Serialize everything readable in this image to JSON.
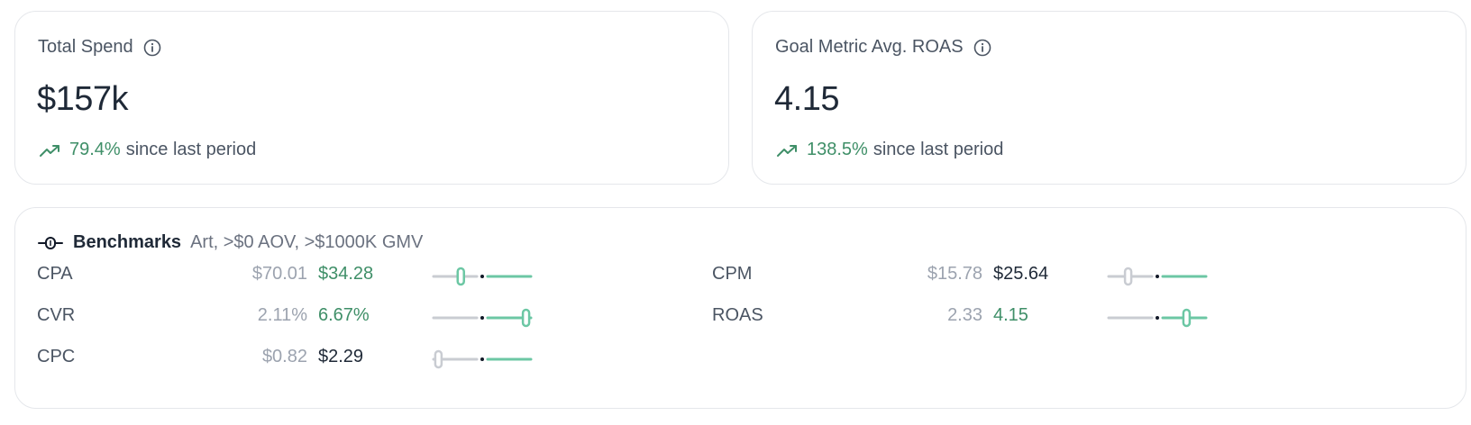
{
  "spend_card": {
    "title": "Total Spend",
    "value": "$157k",
    "change_pct": "79.4%",
    "change_text": "since last period"
  },
  "roas_card": {
    "title": "Goal Metric Avg. ROAS",
    "value": "4.15",
    "change_pct": "138.5%",
    "change_text": "since last period"
  },
  "benchmarks": {
    "title": "Benchmarks",
    "subtitle": "Art, >$0 AOV, >$1000K GMV",
    "rows": [
      {
        "label": "CPA",
        "benchmark": "$70.01",
        "value": "$34.28",
        "tone": "good",
        "marker": "green",
        "position": 0.28
      },
      {
        "label": "CVR",
        "benchmark": "2.11%",
        "value": "6.67%",
        "tone": "good",
        "marker": "green",
        "position": 0.95
      },
      {
        "label": "CPC",
        "benchmark": "$0.82",
        "value": "$2.29",
        "tone": "neutral",
        "marker": "gray",
        "position": 0.05
      },
      {
        "label": "CPM",
        "benchmark": "$15.78",
        "value": "$25.64",
        "tone": "neutral",
        "marker": "gray",
        "position": 0.2
      },
      {
        "label": "ROAS",
        "benchmark": "2.33",
        "value": "4.15",
        "tone": "good",
        "marker": "green",
        "position": 0.8
      }
    ]
  },
  "colors": {
    "accent_green": "#3f8f68",
    "track_green": "#6cc7a4",
    "track_gray": "#c9ccd2"
  },
  "icons": {
    "info": "info-icon",
    "trend": "trending-up-icon",
    "benchmark": "commit-icon"
  }
}
